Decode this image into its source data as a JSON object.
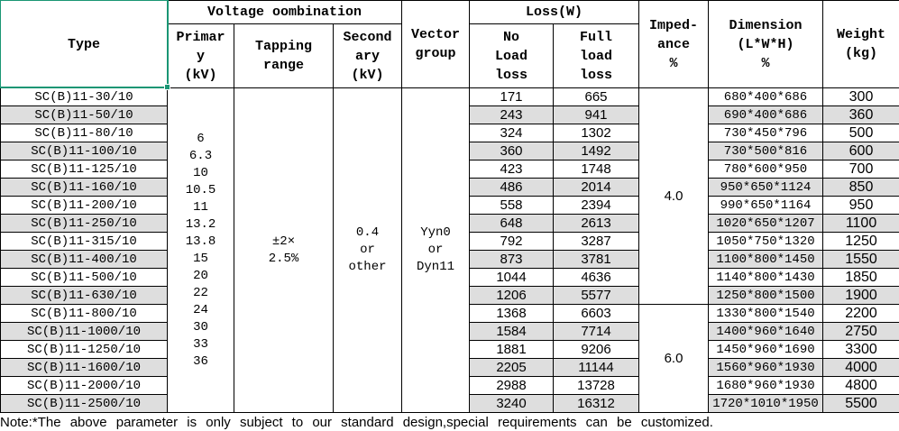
{
  "colors": {
    "selection_green": "#1a9674",
    "row_stripe": "#dedede",
    "grid_line": "#000000",
    "text": "#000000"
  },
  "header": {
    "type": "Type",
    "voltage_combination": "Voltage oombination",
    "primary": "Primar\ny\n(kV)",
    "tapping": "Tapping\nrange",
    "secondary": "Second\nary\n(kV)",
    "vector": "Vector\ngroup",
    "loss": "Loss(W)",
    "no_load": "No\nLoad\nloss",
    "full_load": "Full\nload\nloss",
    "impedance": "Imped-\nance\n%",
    "dimension": "Dimension\n(L*W*H)\n%",
    "weight": "Weight\n(kg)"
  },
  "merged": {
    "primary_values": [
      "6",
      "6.3",
      "10",
      "10.5",
      "11",
      "13.2",
      "13.8",
      "15",
      "20",
      "22",
      "24",
      "30",
      "33",
      "36"
    ],
    "tapping_range": "±2×\n2.5%",
    "secondary_value": "0.4\nor\nother",
    "vector_group": "Yyn0\nor\nDyn11",
    "impedance_groups": [
      {
        "value": "4.0",
        "rows": 12
      },
      {
        "value": "6.0",
        "rows": 6
      }
    ]
  },
  "rows": [
    {
      "type": "SC(B)11-30/10",
      "no_load": "171",
      "full_load": "665",
      "dimension": "680*400*686",
      "weight": "300"
    },
    {
      "type": "SC(B)11-50/10",
      "no_load": "243",
      "full_load": "941",
      "dimension": "690*400*686",
      "weight": "360"
    },
    {
      "type": "SC(B)11-80/10",
      "no_load": "324",
      "full_load": "1302",
      "dimension": "730*450*796",
      "weight": "500"
    },
    {
      "type": "SC(B)11-100/10",
      "no_load": "360",
      "full_load": "1492",
      "dimension": "730*500*816",
      "weight": "600"
    },
    {
      "type": "SC(B)11-125/10",
      "no_load": "423",
      "full_load": "1748",
      "dimension": "780*600*950",
      "weight": "700"
    },
    {
      "type": "SC(B)11-160/10",
      "no_load": "486",
      "full_load": "2014",
      "dimension": "950*650*1124",
      "weight": "850"
    },
    {
      "type": "SC(B)11-200/10",
      "no_load": "558",
      "full_load": "2394",
      "dimension": "990*650*1164",
      "weight": "950"
    },
    {
      "type": "SC(B)11-250/10",
      "no_load": "648",
      "full_load": "2613",
      "dimension": "1020*650*1207",
      "weight": "1100"
    },
    {
      "type": "SC(B)11-315/10",
      "no_load": "792",
      "full_load": "3287",
      "dimension": "1050*750*1320",
      "weight": "1250"
    },
    {
      "type": "SC(B)11-400/10",
      "no_load": "873",
      "full_load": "3781",
      "dimension": "1100*800*1450",
      "weight": "1550"
    },
    {
      "type": "SC(B)11-500/10",
      "no_load": "1044",
      "full_load": "4636",
      "dimension": "1140*800*1430",
      "weight": "1850"
    },
    {
      "type": "SC(B)11-630/10",
      "no_load": "1206",
      "full_load": "5577",
      "dimension": "1250*800*1500",
      "weight": "1900"
    },
    {
      "type": "SC(B)11-800/10",
      "no_load": "1368",
      "full_load": "6603",
      "dimension": "1330*800*1540",
      "weight": "2200"
    },
    {
      "type": "SC(B)11-1000/10",
      "no_load": "1584",
      "full_load": "7714",
      "dimension": "1400*960*1640",
      "weight": "2750"
    },
    {
      "type": "SC(B)11-1250/10",
      "no_load": "1881",
      "full_load": "9206",
      "dimension": "1450*960*1690",
      "weight": "3300"
    },
    {
      "type": "SC(B)11-1600/10",
      "no_load": "2205",
      "full_load": "11144",
      "dimension": "1560*960*1930",
      "weight": "4000"
    },
    {
      "type": "SC(B)11-2000/10",
      "no_load": "2988",
      "full_load": "13728",
      "dimension": "1680*960*1930",
      "weight": "4800"
    },
    {
      "type": "SC(B)11-2500/10",
      "no_load": "3240",
      "full_load": "16312",
      "dimension": "1720*1010*1950",
      "weight": "5500"
    }
  ],
  "note": "Note:*The above parameter is only subject to our standard design,special requirements can be customized."
}
